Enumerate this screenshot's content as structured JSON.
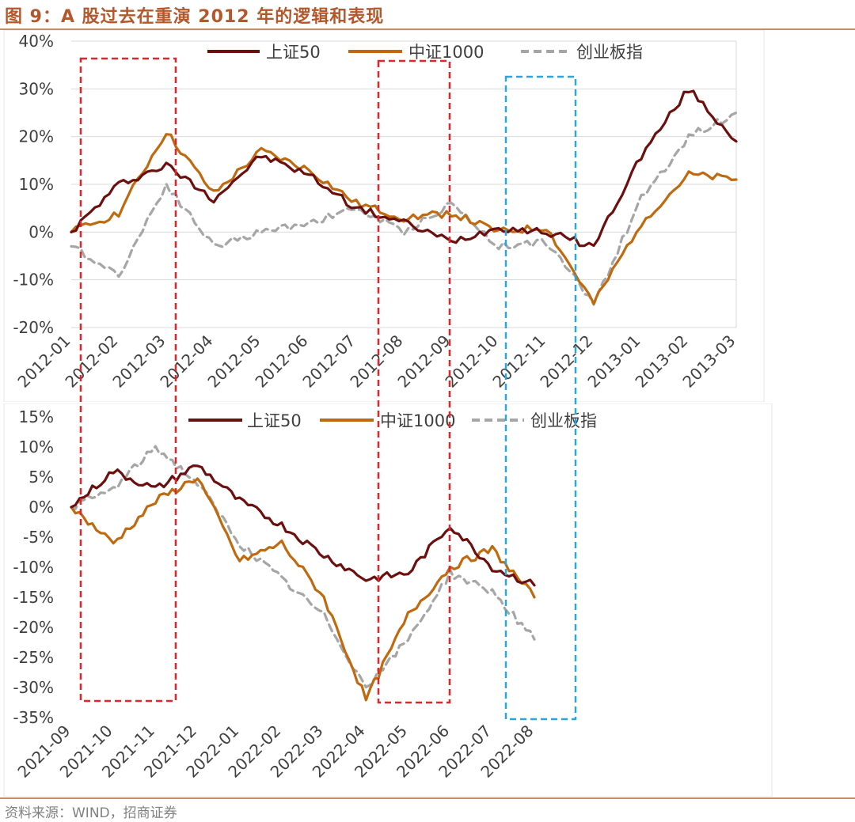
{
  "title": "图 9：A 股过去在重演 2012 年的逻辑和表现",
  "source": "资料来源：WIND，招商证券",
  "colors": {
    "sz50": "#6b0f0f",
    "zz1000": "#c06a10",
    "cyb": "#a6a6a6",
    "red_box": "#e0252b",
    "blue_box": "#2aa7d8"
  },
  "chart_data": [
    {
      "type": "line",
      "title": "",
      "x": [
        "2012-01",
        "2012-02",
        "2012-03",
        "2012-04",
        "2012-05",
        "2012-06",
        "2012-07",
        "2012-08",
        "2012-09",
        "2012-10",
        "2012-11",
        "2012-12",
        "2013-01",
        "2013-02",
        "2013-03"
      ],
      "ylim": [
        -20,
        40
      ],
      "yticks": [
        "-20%",
        "-10%",
        "0%",
        "10%",
        "20%",
        "30%",
        "40%"
      ],
      "legend": "top",
      "series": [
        {
          "name": "上证50",
          "style": "solid",
          "values": [
            0,
            10,
            14,
            7,
            16,
            12,
            5,
            2,
            -2,
            1,
            0,
            -3,
            16,
            30,
            19
          ]
        },
        {
          "name": "中证1000",
          "style": "solid",
          "values": [
            0,
            4,
            21,
            8,
            17,
            13,
            6,
            3,
            4,
            0,
            1,
            -15,
            2,
            12,
            11
          ]
        },
        {
          "name": "创业板指",
          "style": "dashed",
          "values": [
            -3,
            -9,
            10,
            -3,
            0,
            2,
            5,
            0,
            6,
            -3,
            -2,
            -15,
            7,
            20,
            25
          ]
        }
      ]
    },
    {
      "type": "line",
      "title": "",
      "x": [
        "2021-09",
        "2021-10",
        "2021-11",
        "2021-12",
        "2022-01",
        "2022-02",
        "2022-03",
        "2022-04",
        "2022-05",
        "2022-06",
        "2022-07",
        "2022-08"
      ],
      "ylim": [
        -35,
        15
      ],
      "yticks": [
        "-35%",
        "-30%",
        "-25%",
        "-20%",
        "-15%",
        "-10%",
        "-5%",
        "0%",
        "5%",
        "10%",
        "15%"
      ],
      "legend": "top",
      "series": [
        {
          "name": "上证50",
          "style": "solid",
          "values": [
            0,
            6,
            3,
            7,
            1,
            -3,
            -8,
            -12,
            -11,
            -3,
            -10,
            -13
          ]
        },
        {
          "name": "中证1000",
          "style": "solid",
          "values": [
            0,
            -6,
            1,
            5,
            -9,
            -6,
            -15,
            -32,
            -18,
            -10,
            -7,
            -15
          ]
        },
        {
          "name": "创业板指",
          "style": "dashed",
          "values": [
            0,
            3,
            10,
            4,
            -6,
            -12,
            -18,
            -30,
            -22,
            -11,
            -14,
            -22
          ]
        }
      ]
    }
  ]
}
